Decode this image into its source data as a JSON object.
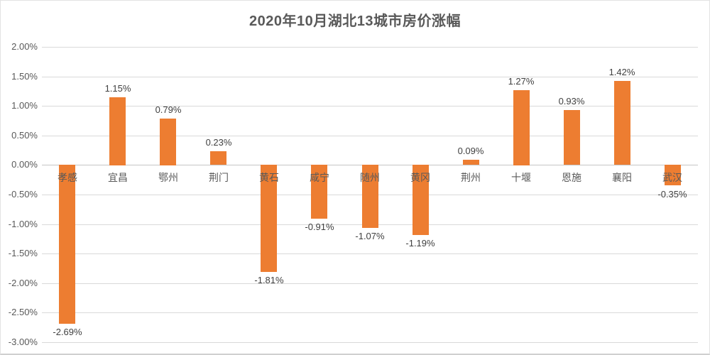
{
  "title": "2020年10月湖北13城市房价涨幅",
  "colors": {
    "bar": "#ED7D31",
    "gridline": "#D9D9D9",
    "zero_line": "#C6C6C6",
    "title_text": "#595959",
    "axis_text": "#595959",
    "data_label_text": "#404040"
  },
  "chart_data": {
    "type": "bar",
    "title": "2020年10月湖北13城市房价涨幅",
    "categories": [
      "孝感",
      "宜昌",
      "鄂州",
      "荆门",
      "黄石",
      "咸宁",
      "随州",
      "黄冈",
      "荆州",
      "十堰",
      "恩施",
      "襄阳",
      "武汉"
    ],
    "values": [
      -2.69,
      1.15,
      0.79,
      0.23,
      -1.81,
      -0.91,
      -1.07,
      -1.19,
      0.09,
      1.27,
      0.93,
      1.42,
      -0.35
    ],
    "data_labels": [
      "-2.69%",
      "1.15%",
      "0.79%",
      "0.23%",
      "-1.81%",
      "-0.91%",
      "-1.07%",
      "-1.19%",
      "0.09%",
      "1.27%",
      "0.93%",
      "1.42%",
      "-0.35%"
    ],
    "xlabel": "",
    "ylabel": "",
    "grid": true,
    "legend": "none",
    "y_axis": {
      "min": -3.0,
      "max": 2.0,
      "step": 0.5,
      "tick_labels": [
        "2.00%",
        "1.50%",
        "1.00%",
        "0.50%",
        "0.00%",
        "-0.50%",
        "-1.00%",
        "-1.50%",
        "-2.00%",
        "-2.50%",
        "-3.00%"
      ]
    }
  }
}
